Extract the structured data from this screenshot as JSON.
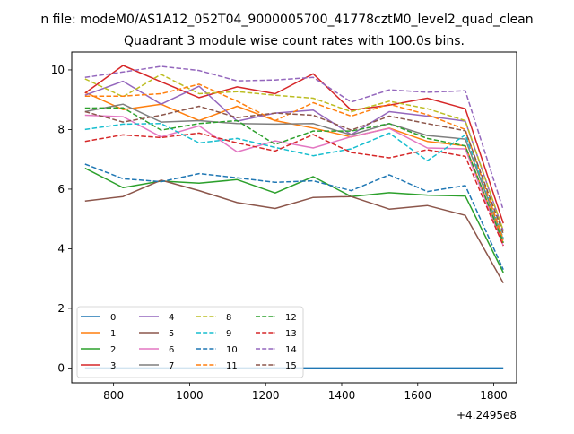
{
  "figure": {
    "suptitle": "n file: modeM0/AS1A12_052T04_9000005700_41778cztM0_level2_quad_clean",
    "offset_label": "+4.2495e8"
  },
  "colors": {
    "series": [
      "#1f77b4",
      "#ff7f0e",
      "#2ca02c",
      "#d62728",
      "#9467bd",
      "#8c564b",
      "#e377c2",
      "#7f7f7f",
      "#bcbd22",
      "#17becf",
      "#1f77b4",
      "#ff7f0e",
      "#2ca02c",
      "#d62728",
      "#9467bd",
      "#8c564b"
    ]
  },
  "chart_data": {
    "type": "line",
    "title": "Quadrant 3 module wise count rates with 100.0s bins.",
    "xlabel": "",
    "ylabel": "",
    "x_offset": 424950000,
    "xlim": [
      690,
      1860
    ],
    "ylim": [
      -0.5,
      10.6
    ],
    "xticks": [
      800,
      1000,
      1200,
      1400,
      1600,
      1800
    ],
    "yticks": [
      0,
      2,
      4,
      6,
      8,
      10
    ],
    "grid": false,
    "legend": {
      "placement": "lower-left",
      "columns": 4
    },
    "x": [
      725,
      825,
      925,
      1025,
      1125,
      1225,
      1325,
      1425,
      1525,
      1625,
      1725,
      1825
    ],
    "series": [
      {
        "name": "0",
        "style": "solid",
        "values": [
          0,
          0,
          0,
          0,
          0,
          0,
          0,
          0,
          0,
          0,
          0,
          0
        ]
      },
      {
        "name": "1",
        "style": "solid",
        "values": [
          9.25,
          8.67,
          8.85,
          8.3,
          8.78,
          8.3,
          8.05,
          7.75,
          8.05,
          7.6,
          7.45,
          4.2
        ]
      },
      {
        "name": "2",
        "style": "solid",
        "values": [
          6.7,
          6.05,
          6.27,
          6.2,
          6.32,
          5.87,
          6.42,
          5.75,
          5.88,
          5.8,
          5.77,
          3.2
        ]
      },
      {
        "name": "3",
        "style": "solid",
        "values": [
          9.22,
          10.15,
          9.6,
          9.07,
          9.43,
          9.2,
          9.87,
          8.65,
          8.82,
          9.05,
          8.7,
          4.85
        ]
      },
      {
        "name": "4",
        "style": "solid",
        "values": [
          9.15,
          9.62,
          8.85,
          9.45,
          8.28,
          8.55,
          8.65,
          7.83,
          8.6,
          8.45,
          8.28,
          4.6
        ]
      },
      {
        "name": "5",
        "style": "solid",
        "values": [
          5.6,
          5.75,
          6.3,
          5.95,
          5.55,
          5.35,
          5.72,
          5.75,
          5.33,
          5.45,
          5.12,
          2.85
        ]
      },
      {
        "name": "6",
        "style": "solid",
        "values": [
          8.48,
          8.43,
          7.75,
          8.12,
          7.25,
          7.62,
          7.38,
          7.76,
          8.04,
          7.38,
          7.35,
          4.1
        ]
      },
      {
        "name": "7",
        "style": "solid",
        "values": [
          8.6,
          8.85,
          8.25,
          8.3,
          8.2,
          8.18,
          8.2,
          7.82,
          8.2,
          7.8,
          7.68,
          4.3
        ]
      },
      {
        "name": "8",
        "style": "dashed",
        "values": [
          9.7,
          9.1,
          9.85,
          9.2,
          9.27,
          9.15,
          9.05,
          8.6,
          8.95,
          8.7,
          8.3,
          4.6
        ]
      },
      {
        "name": "9",
        "style": "dashed",
        "values": [
          8.0,
          8.18,
          8.2,
          7.55,
          7.7,
          7.4,
          7.12,
          7.35,
          7.88,
          6.95,
          7.82,
          4.35
        ]
      },
      {
        "name": "10",
        "style": "dashed",
        "values": [
          6.84,
          6.35,
          6.25,
          6.52,
          6.38,
          6.23,
          6.28,
          5.95,
          6.48,
          5.92,
          6.12,
          3.3
        ]
      },
      {
        "name": "11",
        "style": "dashed",
        "values": [
          9.12,
          9.12,
          9.2,
          9.52,
          8.95,
          8.3,
          8.9,
          8.45,
          8.85,
          8.5,
          8.0,
          4.3
        ]
      },
      {
        "name": "12",
        "style": "dashed",
        "values": [
          8.72,
          8.73,
          7.98,
          8.2,
          8.3,
          7.5,
          7.95,
          7.95,
          8.2,
          7.7,
          7.45,
          4.2
        ]
      },
      {
        "name": "13",
        "style": "dashed",
        "values": [
          7.6,
          7.82,
          7.73,
          7.88,
          7.55,
          7.28,
          7.83,
          7.23,
          7.05,
          7.32,
          7.1,
          4.1
        ]
      },
      {
        "name": "14",
        "style": "dashed",
        "values": [
          9.75,
          9.93,
          10.12,
          9.98,
          9.63,
          9.66,
          9.75,
          8.92,
          9.33,
          9.25,
          9.3,
          5.3
        ]
      },
      {
        "name": "15",
        "style": "dashed",
        "values": [
          8.6,
          8.25,
          8.48,
          8.78,
          8.4,
          8.55,
          8.48,
          7.98,
          8.45,
          8.2,
          7.96,
          4.5
        ]
      }
    ]
  }
}
